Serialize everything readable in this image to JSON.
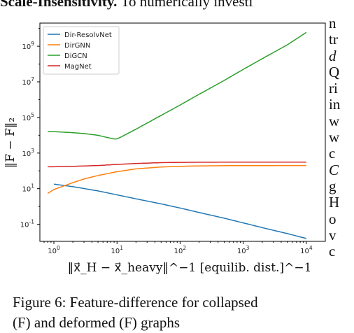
{
  "paper": {
    "heading_bold": "Scale-Insensitivity.",
    "heading_rest": "To numerically investi",
    "right_fragments": [
      "n",
      "tr",
      "d",
      "Q",
      "ri",
      "in",
      "w",
      "w",
      "c",
      "C",
      "g",
      "H",
      "o",
      "v",
      "c"
    ],
    "caption_line1": "Figure 6: Feature-difference for collapsed",
    "caption_line2": "(F) and deformed (F) graphs"
  },
  "chart_data": {
    "type": "line",
    "xscale": "log",
    "yscale": "log",
    "xlim": [
      0.6,
      20000
    ],
    "ylim": [
      0.011,
      20000000000
    ],
    "x_ticks": [
      1,
      10,
      100,
      1000,
      10000
    ],
    "x_tick_labels": [
      "10^0",
      "10^1",
      "10^2",
      "10^3",
      "10^4"
    ],
    "y_ticks": [
      0.1,
      10,
      1000,
      100000,
      10000000,
      1000000000
    ],
    "y_tick_labels": [
      "10^-1",
      "10^1",
      "10^3",
      "10^5",
      "10^7",
      "10^9"
    ],
    "xlabel": "‖x⃗_H − x⃗_heavy‖^−1 [equilib. dist.]^−1",
    "ylabel": "‖F − F‖₂",
    "legend_position": "top-left",
    "series": [
      {
        "name": "Dir-ResolvNet",
        "color": "#1f77b4",
        "x": [
          1,
          2,
          5,
          10,
          20,
          50,
          100,
          200,
          500,
          1000,
          2000,
          5000,
          10000
        ],
        "y": [
          18,
          13,
          7.5,
          4.5,
          2.7,
          1.4,
          0.82,
          0.46,
          0.22,
          0.12,
          0.065,
          0.03,
          0.016
        ]
      },
      {
        "name": "DirGNN",
        "color": "#ff7f0e",
        "x": [
          0.8,
          1,
          1.5,
          2,
          3,
          5,
          10,
          20,
          50,
          100,
          200,
          500,
          1000,
          10000
        ],
        "y": [
          5.5,
          9,
          15,
          22,
          35,
          55,
          90,
          130,
          165,
          180,
          190,
          195,
          198,
          200
        ]
      },
      {
        "name": "DiGCN",
        "color": "#2ca02c",
        "x": [
          0.8,
          1,
          2,
          3,
          5,
          7,
          9,
          10,
          12,
          20,
          50,
          100,
          200,
          500,
          1000,
          2000,
          5000,
          10000
        ],
        "y": [
          16000,
          16000,
          14000,
          12500,
          10000,
          7500,
          6200,
          6200,
          8500,
          22000,
          130000,
          500000,
          2000000,
          12000000,
          50000000,
          200000000,
          1200000000,
          6000000000
        ]
      },
      {
        "name": "MagNet",
        "color": "#d62728",
        "x": [
          0.8,
          1,
          2,
          5,
          10,
          20,
          50,
          100,
          200,
          500,
          1000,
          10000
        ],
        "y": [
          170,
          170,
          180,
          200,
          230,
          260,
          290,
          300,
          305,
          308,
          310,
          310
        ]
      }
    ]
  }
}
